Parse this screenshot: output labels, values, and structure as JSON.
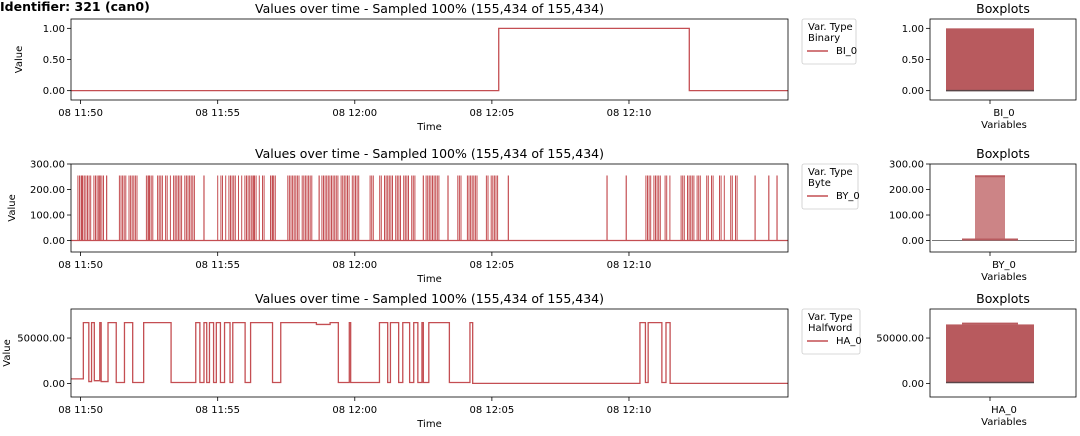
{
  "figure": {
    "suptitle": "Identifier: 321 (can0)",
    "colors": {
      "series": "#c44e52",
      "box": "#b85a5e",
      "box_light": "#cc8486",
      "median": "#5a4548"
    }
  },
  "chart_data": [
    {
      "type": "line",
      "title": "Values over time - Sampled 100% (155,434 of 155,434)",
      "xlabel": "Time",
      "ylabel": "Value",
      "x_ticks": [
        "08 11:50",
        "08 11:55",
        "08 12:00",
        "08 12:05",
        "08 12:10"
      ],
      "x_tick_minutes": [
        0,
        5,
        10,
        15,
        20
      ],
      "xlim_minutes": [
        -0.35,
        25.8
      ],
      "ylim": [
        -0.15,
        1.15
      ],
      "y_ticks": [
        0,
        0.5,
        1
      ],
      "y_tick_labels": [
        "0.00",
        "0.50",
        "1.00"
      ],
      "legend": {
        "title": "Var. Type\nBinary",
        "entries": [
          "BI_0"
        ],
        "placement": "outside-right"
      },
      "series": [
        {
          "name": "BI_0",
          "style": "step",
          "x": [
            -0.35,
            15.25,
            15.25,
            22.2,
            22.2,
            25.8
          ],
          "y": [
            0,
            0,
            1,
            1,
            0,
            0
          ]
        }
      ],
      "boxplot": {
        "title": "Boxplots",
        "xlabel": "Variables",
        "category": "BI_0",
        "q1": 0,
        "median": 0,
        "q3": 1,
        "ylim": [
          -0.15,
          1.15
        ],
        "y_ticks": [
          0,
          0.5,
          1
        ],
        "y_tick_labels": [
          "0.00",
          "0.50",
          "1.00"
        ]
      }
    },
    {
      "type": "line",
      "title": "Values over time - Sampled 100% (155,434 of 155,434)",
      "xlabel": "Time",
      "ylabel": "Value",
      "x_ticks": [
        "08 11:50",
        "08 11:55",
        "08 12:00",
        "08 12:05",
        "08 12:10"
      ],
      "x_tick_minutes": [
        0,
        5,
        10,
        15,
        20
      ],
      "xlim_minutes": [
        -0.35,
        25.8
      ],
      "ylim": [
        -45,
        300
      ],
      "y_ticks": [
        0,
        100,
        200,
        300
      ],
      "y_tick_labels": [
        "0.00",
        "100.00",
        "200.00",
        "300.00"
      ],
      "legend": {
        "title": "Var. Type\nByte",
        "entries": [
          "BY_0"
        ],
        "placement": "outside-right"
      },
      "series": [
        {
          "name": "BY_0",
          "style": "bursts",
          "baseline": 0,
          "peak": 255,
          "dense_ranges_minutes": [
            [
              -0.1,
              0.9
            ],
            [
              1.3,
              2.1
            ],
            [
              2.4,
              4.2
            ],
            [
              5.0,
              7.2
            ],
            [
              7.5,
              8.5
            ],
            [
              8.8,
              10.2
            ],
            [
              10.5,
              12.2
            ],
            [
              12.6,
              13.2
            ],
            [
              13.7,
              14.5
            ],
            [
              14.8,
              15.3
            ],
            [
              20.5,
              21.6
            ],
            [
              21.9,
              23.1
            ],
            [
              23.3,
              24.0
            ]
          ],
          "spikes_minutes": [
            0.05,
            0.7,
            0.95,
            2.5,
            4.5,
            6.3,
            7.0,
            8.7,
            12.5,
            13.4,
            15.6,
            19.2,
            19.9,
            24.6,
            25.1,
            25.4
          ]
        }
      ],
      "boxplot": {
        "title": "Boxplots",
        "xlabel": "Variables",
        "category": "BY_0",
        "q1": 0,
        "median": 0,
        "q3": 0,
        "whisker_low": 0,
        "whisker_high": 0,
        "outlier_band": [
          5,
          252
        ],
        "ylim": [
          -45,
          300
        ],
        "y_ticks": [
          0,
          100,
          200,
          300
        ],
        "y_tick_labels": [
          "0.00",
          "100.00",
          "200.00",
          "300.00"
        ]
      }
    },
    {
      "type": "line",
      "title": "Values over time - Sampled 100% (155,434 of 155,434)",
      "xlabel": "Time",
      "ylabel": "Value",
      "x_ticks": [
        "08 11:50",
        "08 11:55",
        "08 12:00",
        "08 12:05",
        "08 12:10"
      ],
      "x_tick_minutes": [
        0,
        5,
        10,
        15,
        20
      ],
      "xlim_minutes": [
        -0.35,
        25.8
      ],
      "ylim": [
        -15000,
        82000
      ],
      "y_ticks": [
        0,
        50000
      ],
      "y_tick_labels": [
        "0.00",
        "50000.00"
      ],
      "legend": {
        "title": "Var. Type\nHalfword",
        "entries": [
          "HA_0"
        ],
        "placement": "outside-right"
      },
      "series": [
        {
          "name": "HA_0",
          "style": "step",
          "x": [
            -0.35,
            0.1,
            0.1,
            0.3,
            0.3,
            0.4,
            0.4,
            0.5,
            0.5,
            0.7,
            0.7,
            0.75,
            0.75,
            1.0,
            1.0,
            1.3,
            1.3,
            1.6,
            1.6,
            1.9,
            1.9,
            2.3,
            2.3,
            3.3,
            3.3,
            4.2,
            4.2,
            4.35,
            4.35,
            4.5,
            4.5,
            4.6,
            4.6,
            4.7,
            4.7,
            4.85,
            4.85,
            4.95,
            4.95,
            5.1,
            5.1,
            5.25,
            5.25,
            5.45,
            5.45,
            5.55,
            5.55,
            6.0,
            6.0,
            6.2,
            6.2,
            7.0,
            7.0,
            7.3,
            7.3,
            8.6,
            8.6,
            9.1,
            9.1,
            9.4,
            9.4,
            9.8,
            9.8,
            9.85,
            9.85,
            10.9,
            10.9,
            11.2,
            11.2,
            11.3,
            11.3,
            11.6,
            11.6,
            11.75,
            11.75,
            12.0,
            12.0,
            12.15,
            12.15,
            12.3,
            12.3,
            12.45,
            12.45,
            12.5,
            12.5,
            12.7,
            12.7,
            13.45,
            13.45,
            14.2,
            14.2,
            14.3,
            14.3,
            20.4,
            20.4,
            20.6,
            20.6,
            20.7,
            20.7,
            21.2,
            21.2,
            21.35,
            21.35,
            21.5,
            21.5,
            25.8
          ],
          "y": [
            5000,
            5000,
            67000,
            67000,
            2000,
            2000,
            67000,
            67000,
            3000,
            3000,
            67000,
            67000,
            2000,
            2000,
            67000,
            67000,
            1000,
            1000,
            67000,
            67000,
            1000,
            1000,
            67000,
            67000,
            1000,
            1000,
            67000,
            67000,
            1000,
            1000,
            67000,
            67000,
            1000,
            1000,
            67000,
            67000,
            1000,
            1000,
            67000,
            67000,
            1000,
            1000,
            67000,
            67000,
            1000,
            1000,
            67000,
            67000,
            1000,
            1000,
            67000,
            67000,
            1000,
            1000,
            67000,
            67000,
            65000,
            65000,
            67000,
            67000,
            1000,
            1000,
            67000,
            67000,
            1000,
            1000,
            67000,
            67000,
            1000,
            1000,
            67000,
            67000,
            1000,
            1000,
            67000,
            67000,
            1000,
            1000,
            67000,
            67000,
            1000,
            1000,
            67000,
            67000,
            1000,
            1000,
            67000,
            67000,
            1000,
            1000,
            67000,
            67000,
            0,
            0,
            67000,
            67000,
            1000,
            1000,
            67000,
            67000,
            1000,
            1000,
            67000,
            67000,
            0,
            0
          ]
        }
      ],
      "boxplot": {
        "title": "Boxplots",
        "xlabel": "Variables",
        "category": "HA_0",
        "q1": 1000,
        "median": 1000,
        "q3": 65000,
        "upper_notch": 67000,
        "ylim": [
          -15000,
          82000
        ],
        "y_ticks": [
          0,
          50000
        ],
        "y_tick_labels": [
          "0.00",
          "50000.00"
        ]
      }
    }
  ]
}
